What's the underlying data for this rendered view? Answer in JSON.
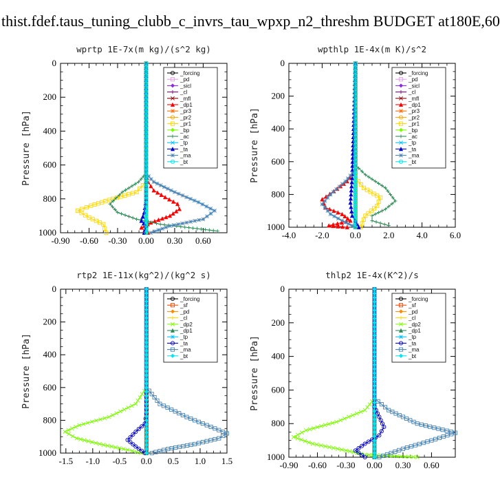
{
  "title": "thist.fdef.taus_tuning_clubb_c_invrs_tau_wpxp_n2_threshm  BUDGET at180E,60",
  "chart_data": [
    {
      "type": "line",
      "title": "wprtp  1E-7x(m kg)/(s^2 kg)",
      "ylabel": "Pressure [hPa]",
      "xlim": [
        -0.9,
        0.85
      ],
      "ylim": [
        1000,
        0
      ],
      "xticks": [
        "-0.90",
        "-0.60",
        "-0.30",
        "0.00",
        "0.30",
        "0.60"
      ],
      "xtick_values": [
        -0.9,
        -0.6,
        -0.3,
        0,
        0.3,
        0.6
      ],
      "yticks": [
        "0",
        "200",
        "400",
        "600",
        "800",
        "1000"
      ],
      "ytick_values": [
        0,
        200,
        400,
        600,
        800,
        1000
      ],
      "legend": "top-right",
      "series": [
        {
          "name": "_forcing",
          "color": "#000000",
          "x": [
            0,
            0,
            0,
            0,
            0,
            0,
            0,
            0,
            0,
            0,
            0
          ],
          "y": [
            0,
            100,
            200,
            300,
            400,
            500,
            600,
            700,
            800,
            900,
            1000
          ]
        },
        {
          "name": "_pd",
          "color": "#e0a0e0",
          "x": [
            0,
            0,
            0
          ],
          "y": [
            0,
            500,
            1000
          ]
        },
        {
          "name": "_sicl",
          "color": "#8a2be2",
          "x": [
            0,
            0,
            0
          ],
          "y": [
            0,
            500,
            1000
          ]
        },
        {
          "name": "_cl",
          "color": "#800080",
          "x": [
            0,
            0,
            0
          ],
          "y": [
            0,
            500,
            1000
          ]
        },
        {
          "name": "_mfl",
          "color": "#8b0000",
          "x": [
            0,
            0,
            0
          ],
          "y": [
            0,
            500,
            1000
          ]
        },
        {
          "name": "_dp1",
          "color": "#ff0000",
          "x": [
            0,
            0,
            0,
            0.02,
            0.08,
            0.2,
            0.33,
            0.35,
            0.25,
            0.05,
            -0.05,
            0.02
          ],
          "y": [
            0,
            600,
            650,
            700,
            750,
            790,
            830,
            860,
            900,
            940,
            970,
            1000
          ]
        },
        {
          "name": "_pr3",
          "color": "#ff6600",
          "x": [
            0,
            0,
            0
          ],
          "y": [
            0,
            500,
            1000
          ]
        },
        {
          "name": "_pr2",
          "color": "#ffa500",
          "x": [
            0,
            0,
            0
          ],
          "y": [
            0,
            500,
            1000
          ]
        },
        {
          "name": "_pr1",
          "color": "#ffd700",
          "x": [
            0,
            0,
            -0.1,
            -0.35,
            -0.58,
            -0.72,
            -0.6,
            -0.45,
            -0.42
          ],
          "y": [
            0,
            700,
            760,
            800,
            840,
            870,
            910,
            950,
            1000
          ]
        },
        {
          "name": "_bp",
          "color": "#7cfc00",
          "x": [
            0,
            0,
            0
          ],
          "y": [
            0,
            500,
            1000
          ]
        },
        {
          "name": "_ac",
          "color": "#2e8b57",
          "x": [
            0,
            0,
            -0.08,
            -0.25,
            -0.38,
            -0.3,
            -0.1,
            0.15,
            0.45,
            0.75
          ],
          "y": [
            0,
            650,
            700,
            760,
            830,
            880,
            920,
            950,
            970,
            990
          ]
        },
        {
          "name": "_tp",
          "color": "#00bfff",
          "x": [
            0,
            0,
            0
          ],
          "y": [
            0,
            500,
            1000
          ]
        },
        {
          "name": "_ta",
          "color": "#0000cd",
          "x": [
            0,
            0,
            0,
            -0.02,
            -0.05,
            0.0,
            -0.02
          ],
          "y": [
            0,
            700,
            800,
            880,
            930,
            960,
            1000
          ]
        },
        {
          "name": "_ma",
          "color": "#4682b4",
          "x": [
            0,
            0,
            0.08,
            0.3,
            0.55,
            0.72,
            0.6,
            0.25,
            0.05
          ],
          "y": [
            0,
            650,
            700,
            760,
            820,
            870,
            920,
            960,
            1000
          ]
        },
        {
          "name": "_bt",
          "color": "#00e5ee",
          "x": [
            0,
            0,
            0
          ],
          "y": [
            0,
            500,
            1000
          ]
        }
      ]
    },
    {
      "type": "line",
      "title": "wpthlp  1E-4x(m K)/s^2",
      "ylabel": "Pressure [hPa]",
      "xlim": [
        -4.0,
        6.0
      ],
      "ylim": [
        1000,
        0
      ],
      "xticks": [
        "-4.0",
        "-2.0",
        "0.0",
        "2.0",
        "4.0",
        "6.0"
      ],
      "xtick_values": [
        -4,
        -2,
        0,
        2,
        4,
        6
      ],
      "yticks": [
        "0",
        "200",
        "400",
        "600",
        "800",
        "1000"
      ],
      "ytick_values": [
        0,
        200,
        400,
        600,
        800,
        1000
      ],
      "legend": "top-right",
      "series": [
        {
          "name": "_forcing",
          "color": "#000000",
          "x": [
            0,
            0,
            0
          ],
          "y": [
            0,
            500,
            1000
          ]
        },
        {
          "name": "_pd",
          "color": "#e0a0e0",
          "x": [
            0,
            0,
            0
          ],
          "y": [
            0,
            500,
            1000
          ]
        },
        {
          "name": "_sicl",
          "color": "#8a2be2",
          "x": [
            0,
            0,
            0
          ],
          "y": [
            0,
            500,
            1000
          ]
        },
        {
          "name": "_cl",
          "color": "#800080",
          "x": [
            0,
            0,
            0
          ],
          "y": [
            0,
            500,
            1000
          ]
        },
        {
          "name": "_mfl",
          "color": "#8b0000",
          "x": [
            0,
            0,
            0
          ],
          "y": [
            0,
            500,
            1000
          ]
        },
        {
          "name": "_dp1",
          "color": "#ff0000",
          "x": [
            0,
            0,
            -0.5,
            -1.3,
            -2.0,
            -1.8,
            -0.8,
            -0.3,
            -1.6,
            -0.5
          ],
          "y": [
            0,
            650,
            720,
            780,
            830,
            880,
            920,
            960,
            990,
            1000
          ]
        },
        {
          "name": "_pr3",
          "color": "#ff6600",
          "x": [
            0,
            0,
            0
          ],
          "y": [
            0,
            500,
            1000
          ]
        },
        {
          "name": "_pr2",
          "color": "#ffa500",
          "x": [
            0,
            0,
            0
          ],
          "y": [
            0,
            500,
            1000
          ]
        },
        {
          "name": "_pr1",
          "color": "#ffd700",
          "x": [
            0,
            0,
            0.5,
            1.5,
            1.3,
            0.6,
            0.3
          ],
          "y": [
            0,
            700,
            760,
            820,
            870,
            930,
            1000
          ]
        },
        {
          "name": "_bp",
          "color": "#7cfc00",
          "x": [
            0,
            0,
            0
          ],
          "y": [
            0,
            500,
            1000
          ]
        },
        {
          "name": "_ac",
          "color": "#2e8b57",
          "x": [
            0,
            0,
            0.6,
            1.8,
            2.4,
            1.8,
            1.0,
            1.0,
            2.0
          ],
          "y": [
            0,
            620,
            680,
            760,
            840,
            890,
            930,
            960,
            990
          ]
        },
        {
          "name": "_tp",
          "color": "#00bfff",
          "x": [
            0,
            0,
            0
          ],
          "y": [
            0,
            500,
            1000
          ]
        },
        {
          "name": "_ta",
          "color": "#0000cd",
          "x": [
            0,
            0,
            -0.2,
            -0.3,
            -0.2,
            0.0,
            0.2
          ],
          "y": [
            0,
            0,
            700,
            850,
            930,
            960,
            1000
          ]
        },
        {
          "name": "_ma",
          "color": "#4682b4",
          "x": [
            0,
            0,
            -0.6,
            -1.5,
            -2.0,
            -1.5,
            -0.8,
            0.0
          ],
          "y": [
            0,
            650,
            720,
            800,
            860,
            920,
            960,
            1000
          ]
        },
        {
          "name": "_bt",
          "color": "#00e5ee",
          "x": [
            0,
            0,
            0
          ],
          "y": [
            0,
            500,
            1000
          ]
        }
      ]
    },
    {
      "type": "line",
      "title": "rtp2  1E-11x(kg^2)/(kg^2 s)",
      "ylabel": "Pressure [hPa]",
      "xlim": [
        -1.6,
        1.5
      ],
      "ylim": [
        1000,
        0
      ],
      "xticks": [
        "-1.5",
        "-1.0",
        "-0.5",
        "0.0",
        "0.5",
        "1.0",
        "1.5"
      ],
      "xtick_values": [
        -1.5,
        -1,
        -0.5,
        0,
        0.5,
        1,
        1.5
      ],
      "yticks": [
        "0",
        "200",
        "400",
        "600",
        "800",
        "1000"
      ],
      "ytick_values": [
        0,
        200,
        400,
        600,
        800,
        1000
      ],
      "legend": "top-right",
      "series": [
        {
          "name": "_forcing",
          "color": "#000000",
          "x": [
            0,
            0,
            0
          ],
          "y": [
            0,
            500,
            1000
          ]
        },
        {
          "name": "_sf",
          "color": "#ff4500",
          "x": [
            0,
            0,
            0
          ],
          "y": [
            0,
            500,
            1000
          ]
        },
        {
          "name": "_pd",
          "color": "#ff8c00",
          "x": [
            0,
            0,
            0
          ],
          "y": [
            0,
            500,
            1000
          ]
        },
        {
          "name": "_cl",
          "color": "#ffd700",
          "x": [
            0,
            0,
            0
          ],
          "y": [
            0,
            500,
            1000
          ]
        },
        {
          "name": "_dp2",
          "color": "#7cfc00",
          "x": [
            0,
            0,
            -0.2,
            -0.7,
            -1.25,
            -1.52,
            -1.3,
            -0.8,
            -0.35,
            -0.1
          ],
          "y": [
            0,
            600,
            700,
            780,
            830,
            870,
            910,
            950,
            980,
            1000
          ]
        },
        {
          "name": "_dp1",
          "color": "#2e8b57",
          "x": [
            0,
            0,
            0
          ],
          "y": [
            0,
            500,
            1000
          ]
        },
        {
          "name": "_tp",
          "color": "#00bfff",
          "x": [
            0,
            0,
            0
          ],
          "y": [
            0,
            500,
            1000
          ]
        },
        {
          "name": "_ta",
          "color": "#0000cd",
          "x": [
            0,
            0,
            -0.03,
            -0.2,
            -0.35,
            -0.2,
            -0.03
          ],
          "y": [
            0,
            760,
            820,
            870,
            920,
            960,
            1000
          ]
        },
        {
          "name": "_ma",
          "color": "#4682b4",
          "x": [
            0,
            0,
            0.25,
            0.75,
            1.2,
            1.5,
            1.35,
            0.9,
            0.4,
            0.1
          ],
          "y": [
            0,
            600,
            700,
            780,
            840,
            880,
            910,
            945,
            975,
            1000
          ]
        },
        {
          "name": "_bt",
          "color": "#00e5ee",
          "x": [
            0,
            0,
            0
          ],
          "y": [
            0,
            500,
            1000
          ]
        }
      ]
    },
    {
      "type": "line",
      "title": "thlp2  1E-4x(K^2)/s",
      "ylabel": "Pressure [hPa]",
      "xlim": [
        -0.9,
        0.85
      ],
      "ylim": [
        1000,
        0
      ],
      "xticks": [
        "-0.90",
        "-0.60",
        "-0.30",
        "0.00",
        "0.30",
        "0.60"
      ],
      "xtick_values": [
        -0.9,
        -0.6,
        -0.3,
        0,
        0.3,
        0.6
      ],
      "yticks": [
        "0",
        "200",
        "400",
        "600",
        "800",
        "1000"
      ],
      "ytick_values": [
        0,
        200,
        400,
        600,
        800,
        1000
      ],
      "legend": "top-right",
      "series": [
        {
          "name": "_forcing",
          "color": "#000000",
          "x": [
            0,
            0,
            0
          ],
          "y": [
            0,
            500,
            1000
          ]
        },
        {
          "name": "_sf",
          "color": "#ff4500",
          "x": [
            0,
            0,
            0
          ],
          "y": [
            0,
            500,
            1000
          ]
        },
        {
          "name": "_pd",
          "color": "#ff8c00",
          "x": [
            0,
            0,
            0
          ],
          "y": [
            0,
            500,
            1000
          ]
        },
        {
          "name": "_cl",
          "color": "#ffd700",
          "x": [
            0,
            0,
            0
          ],
          "y": [
            0,
            500,
            1000
          ]
        },
        {
          "name": "_dp2",
          "color": "#7cfc00",
          "x": [
            0,
            0,
            -0.1,
            -0.4,
            -0.72,
            -0.85,
            -0.65,
            -0.3,
            -0.1,
            0.45
          ],
          "y": [
            0,
            650,
            720,
            790,
            840,
            880,
            920,
            960,
            985,
            1000
          ]
        },
        {
          "name": "_dp1",
          "color": "#2e8b57",
          "x": [
            0,
            0,
            0
          ],
          "y": [
            0,
            500,
            1000
          ]
        },
        {
          "name": "_tp",
          "color": "#00bfff",
          "x": [
            0,
            0,
            0
          ],
          "y": [
            0,
            500,
            1000
          ]
        },
        {
          "name": "_ta",
          "color": "#0000cd",
          "x": [
            0,
            0,
            0.05,
            0.1,
            0.05,
            -0.1,
            -0.2,
            -0.1
          ],
          "y": [
            0,
            700,
            760,
            820,
            870,
            920,
            960,
            1000
          ]
        },
        {
          "name": "_ma",
          "color": "#4682b4",
          "x": [
            0,
            0,
            0.15,
            0.45,
            0.85,
            0.6,
            0.3,
            0.05
          ],
          "y": [
            0,
            650,
            720,
            800,
            855,
            900,
            950,
            1000
          ]
        },
        {
          "name": "_bt",
          "color": "#00e5ee",
          "x": [
            0,
            0,
            0
          ],
          "y": [
            0,
            500,
            1000
          ]
        }
      ]
    }
  ]
}
